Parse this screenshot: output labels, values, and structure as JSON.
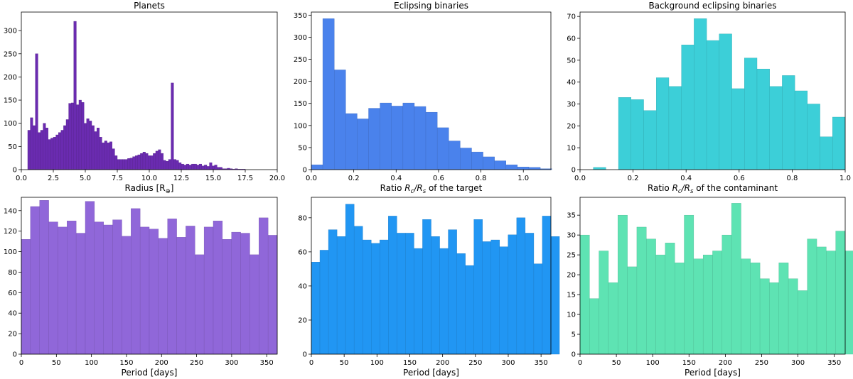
{
  "chart_data": [
    {
      "type": "bar",
      "title": "Planets",
      "xlabel": "Radius [R",
      "xlabel_sub": "⊕",
      "xlabel_end": "]",
      "ylabel": "",
      "color": "#6a2bb0",
      "xlim": [
        0,
        20
      ],
      "ylim": [
        0,
        340
      ],
      "xticks": [
        0.0,
        2.5,
        5.0,
        7.5,
        10.0,
        12.5,
        15.0,
        17.5,
        20.0
      ],
      "xtick_labels": [
        "0.0",
        "2.5",
        "5.0",
        "7.5",
        "10.0",
        "12.5",
        "15.0",
        "17.5",
        "20.0"
      ],
      "yticks": [
        0,
        50,
        100,
        150,
        200,
        250,
        300
      ],
      "ytick_labels": [
        "0",
        "50",
        "100",
        "150",
        "200",
        "250",
        "300"
      ],
      "bin_start": 0.5,
      "bin_width": 0.2,
      "values": [
        85,
        112,
        95,
        250,
        80,
        85,
        100,
        90,
        65,
        68,
        70,
        75,
        80,
        85,
        95,
        108,
        143,
        144,
        320,
        140,
        150,
        145,
        100,
        110,
        105,
        95,
        82,
        90,
        70,
        58,
        62,
        58,
        60,
        45,
        30,
        22,
        22,
        22,
        22,
        24,
        25,
        28,
        30,
        32,
        35,
        38,
        35,
        30,
        30,
        35,
        40,
        43,
        35,
        20,
        18,
        22,
        187,
        22,
        20,
        15,
        12,
        10,
        12,
        10,
        12,
        12,
        10,
        12,
        8,
        10,
        7,
        15,
        8,
        10,
        5,
        5,
        2,
        2,
        3,
        2,
        1,
        2,
        1,
        1,
        1
      ]
    },
    {
      "type": "bar",
      "title": "Eclipsing binaries",
      "xlabel": "Ratio ",
      "xlabel_math": "R",
      "xlabel_sub1": "c",
      "xlabel_sep": "/R",
      "xlabel_sub2": "s",
      "xlabel_end": " of the target",
      "ylabel": "",
      "color": "#4a82ec",
      "xlim": [
        0,
        1.13
      ],
      "ylim": [
        0,
        357
      ],
      "xticks": [
        0.0,
        0.2,
        0.4,
        0.6,
        0.8,
        1.0
      ],
      "xtick_labels": [
        "0.0",
        "0.2",
        "0.4",
        "0.6",
        "0.8",
        "1.0"
      ],
      "yticks": [
        0,
        50,
        100,
        150,
        200,
        250,
        300,
        350
      ],
      "ytick_labels": [
        "0",
        "50",
        "100",
        "150",
        "200",
        "250",
        "300",
        "350"
      ],
      "bin_start": 0.0,
      "bin_width": 0.054,
      "values": [
        11,
        342,
        226,
        127,
        115,
        139,
        151,
        144,
        151,
        143,
        130,
        95,
        65,
        49,
        40,
        29,
        20,
        11,
        6,
        5,
        2
      ]
    },
    {
      "type": "bar",
      "title": "Background eclipsing binaries",
      "xlabel": "Ratio ",
      "xlabel_math": "R",
      "xlabel_sub1": "c",
      "xlabel_sep": "/R",
      "xlabel_sub2": "s",
      "xlabel_end": " of the contaminant",
      "ylabel": "",
      "color": "#3ccfd8",
      "xlim": [
        0,
        1.0
      ],
      "ylim": [
        0,
        72
      ],
      "xticks": [
        0.0,
        0.2,
        0.4,
        0.6,
        0.8,
        1.0
      ],
      "xtick_labels": [
        "0.0",
        "0.2",
        "0.4",
        "0.6",
        "0.8",
        "1.0"
      ],
      "yticks": [
        0,
        10,
        20,
        30,
        40,
        50,
        60,
        70
      ],
      "ytick_labels": [
        "0",
        "10",
        "20",
        "30",
        "40",
        "50",
        "60",
        "70"
      ],
      "bin_start": 0.05,
      "bin_width": 0.0475,
      "values": [
        1,
        0,
        33,
        32,
        27,
        42,
        38,
        57,
        69,
        59,
        62,
        37,
        51,
        46,
        38,
        43,
        36,
        30,
        15,
        24
      ]
    },
    {
      "type": "bar",
      "title": "",
      "xlabel": "Period [days]",
      "ylabel": "",
      "color": "#9067d9",
      "xlim": [
        0,
        365
      ],
      "ylim": [
        0,
        153
      ],
      "xticks": [
        0,
        50,
        100,
        150,
        200,
        250,
        300,
        350
      ],
      "xtick_labels": [
        "0",
        "50",
        "100",
        "150",
        "200",
        "250",
        "300",
        "350"
      ],
      "yticks": [
        0,
        20,
        40,
        60,
        80,
        100,
        120,
        140
      ],
      "ytick_labels": [
        "0",
        "20",
        "40",
        "60",
        "80",
        "100",
        "120",
        "140"
      ],
      "bin_start": 0,
      "bin_width": 13.0357,
      "values": [
        112,
        144,
        150,
        129,
        124,
        130,
        118,
        149,
        129,
        126,
        131,
        115,
        142,
        124,
        122,
        113,
        132,
        114,
        125,
        97,
        124,
        130,
        112,
        119,
        118,
        97,
        133,
        116
      ]
    },
    {
      "type": "bar",
      "title": "",
      "xlabel": "Period [days]",
      "ylabel": "",
      "color": "#2196f3",
      "xlim": [
        0,
        365
      ],
      "ylim": [
        0,
        92
      ],
      "xticks": [
        0,
        50,
        100,
        150,
        200,
        250,
        300,
        350
      ],
      "xtick_labels": [
        "0",
        "50",
        "100",
        "150",
        "200",
        "250",
        "300",
        "350"
      ],
      "yticks": [
        0,
        20,
        40,
        60,
        80
      ],
      "ytick_labels": [
        "0",
        "20",
        "40",
        "60",
        "80"
      ],
      "bin_start": 0,
      "bin_width": 13.0357,
      "values": [
        54,
        61,
        73,
        69,
        88,
        75,
        67,
        65,
        67,
        81,
        71,
        71,
        62,
        79,
        69,
        62,
        73,
        59,
        52,
        79,
        66,
        67,
        63,
        70,
        80,
        71,
        53,
        81,
        69
      ]
    },
    {
      "type": "bar",
      "title": "",
      "xlabel": "Period [days]",
      "ylabel": "",
      "color": "#5ee3b3",
      "xlim": [
        0,
        365
      ],
      "ylim": [
        0,
        39.5
      ],
      "xticks": [
        0,
        50,
        100,
        150,
        200,
        250,
        300,
        350
      ],
      "xtick_labels": [
        "0",
        "50",
        "100",
        "150",
        "200",
        "250",
        "300",
        "350"
      ],
      "yticks": [
        0,
        5,
        10,
        15,
        20,
        25,
        30,
        35
      ],
      "ytick_labels": [
        "0",
        "5",
        "10",
        "15",
        "20",
        "25",
        "30",
        "35"
      ],
      "bin_start": 0,
      "bin_width": 13.0357,
      "values": [
        30,
        14,
        26,
        18,
        35,
        22,
        32,
        29,
        25,
        28,
        23,
        35,
        24,
        25,
        26,
        30,
        38,
        24,
        23,
        19,
        18,
        23,
        19,
        16,
        29,
        27,
        26,
        31,
        26
      ]
    }
  ]
}
